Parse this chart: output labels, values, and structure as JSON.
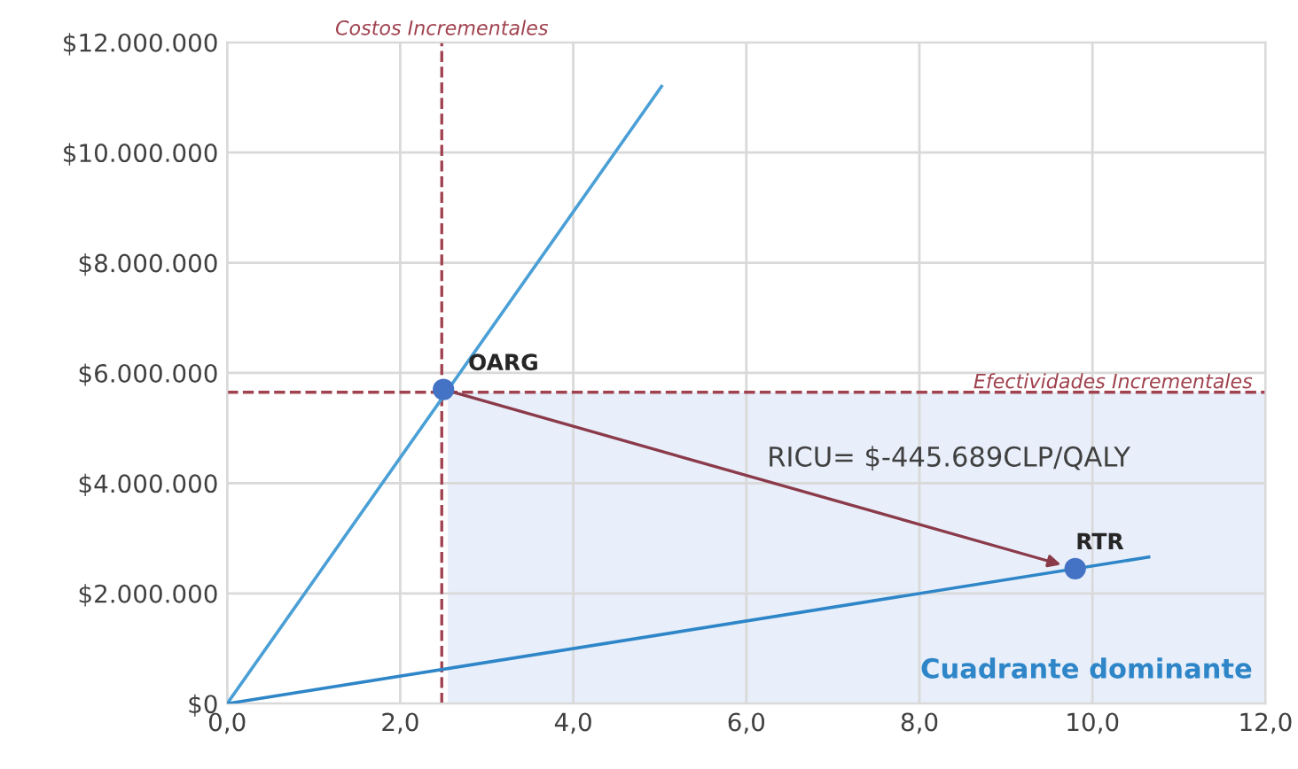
{
  "chart_data": {
    "type": "scatter",
    "series": [
      {
        "type": "line",
        "marker": "none",
        "color": "#4a9fd6",
        "x": [
          0,
          5.02
        ],
        "values": [
          0,
          11200000
        ]
      },
      {
        "type": "line",
        "marker": "none",
        "color": "#2e86c8",
        "x": [
          0,
          10.65
        ],
        "values": [
          0,
          2660000
        ]
      },
      {
        "marker": "circle",
        "color": "#4472c4",
        "x": [
          2.5,
          9.8
        ],
        "values": [
          5700000,
          2450000
        ]
      }
    ],
    "xlim": [
      0,
      12
    ],
    "xticks": [
      {
        "value": 0,
        "label": "0,0"
      },
      {
        "value": 2,
        "label": "2,0"
      },
      {
        "value": 4,
        "label": "4,0"
      },
      {
        "value": 6,
        "label": "6,0"
      },
      {
        "value": 8,
        "label": "8,0"
      },
      {
        "value": 10,
        "label": "10,0"
      },
      {
        "value": 12,
        "label": "12,0"
      }
    ],
    "ylim": [
      0,
      12000000
    ],
    "yticks": [
      {
        "value": 0,
        "label": "$0"
      },
      {
        "value": 2000000,
        "label": "$2.000.000"
      },
      {
        "value": 4000000,
        "label": "$4.000.000"
      },
      {
        "value": 6000000,
        "label": "$6.000.000"
      },
      {
        "value": 8000000,
        "label": "$8.000.000"
      },
      {
        "value": 10000000,
        "label": "$10.000.000"
      },
      {
        "value": 12000000,
        "label": "$12.000.000"
      }
    ],
    "ref_lines": [
      {
        "axis": "x",
        "value": 2.48,
        "label": "Costos Incrementales",
        "color": "#a0424f",
        "line_style": "dashed"
      },
      {
        "axis": "y",
        "value": 5650000,
        "label": "Efectividades Incrementales",
        "color": "#a0424f",
        "line_style": "dashed"
      }
    ],
    "bands": [
      {
        "axis": "x",
        "from": 2.55,
        "to": 12,
        "label": "Cuadrante dominante",
        "color": "#e8effa"
      }
    ],
    "annotations": [
      {
        "text": "OARG",
        "x": 2.5,
        "y": 5700000
      },
      {
        "text": "RTR",
        "x": 9.8,
        "y": 2450000
      },
      "RICU= $-445.689CLP/QALY"
    ],
    "grid": true,
    "line_style": "solid"
  }
}
